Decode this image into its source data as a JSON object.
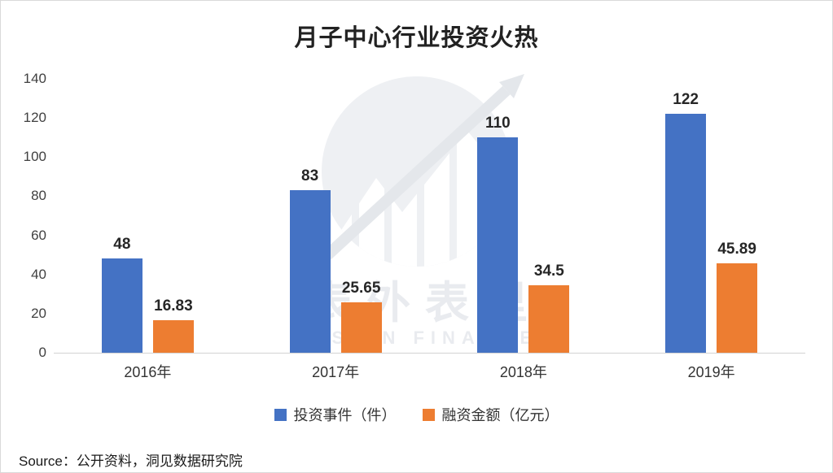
{
  "chart_data": {
    "type": "bar",
    "title": "月子中心行业投资火热",
    "categories": [
      "2016年",
      "2017年",
      "2018年",
      "2019年"
    ],
    "series": [
      {
        "name": "投资事件（件）",
        "color": "#4472C4",
        "values": [
          48,
          83,
          110,
          122
        ]
      },
      {
        "name": "融资金额（亿元）",
        "color": "#ED7D31",
        "values": [
          16.83,
          25.65,
          34.5,
          45.89
        ]
      }
    ],
    "ylim": [
      0,
      140
    ],
    "yticks": [
      0,
      20,
      40,
      60,
      80,
      100,
      120,
      140
    ],
    "grid": false,
    "legend_position": "bottom"
  },
  "watermark": {
    "cn_text": "表外表里",
    "en_text": "VISION FINANCE"
  },
  "source": "Source：公开资料，洞见数据研究院"
}
